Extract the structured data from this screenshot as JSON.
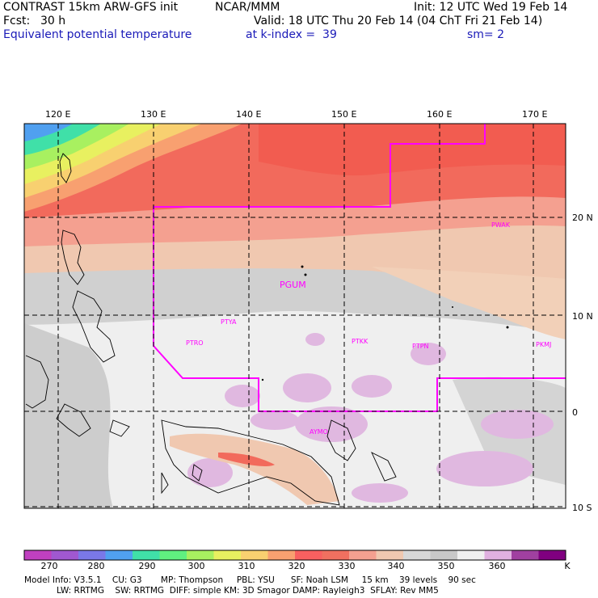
{
  "header": {
    "title": "CONTRAST 15km ARW-GFS init",
    "org": "NCAR/MMM",
    "init": "Init: 12 UTC Wed 19 Feb 14",
    "fcst_label": "Fcst:",
    "fcst_value": "30 h",
    "valid": "Valid: 18 UTC Thu 20 Feb 14 (04 ChT Fri 21 Feb 14)",
    "field": "Equivalent potential temperature",
    "level": "at k-index =  39",
    "smooth": "sm= 2"
  },
  "axes": {
    "lon_labels": [
      "120 E",
      "130 E",
      "140 E",
      "150 E",
      "160 E",
      "170 E"
    ],
    "lat_labels": [
      "20 N",
      "10 N",
      "0",
      "10 S"
    ]
  },
  "stations": [
    "PGUM",
    "PTYA",
    "PTRO",
    "PTKK",
    "PTPN",
    "PKMJ",
    "PWAK",
    "AYMO"
  ],
  "colorscale": {
    "labels": [
      "270",
      "280",
      "290",
      "300",
      "310",
      "320",
      "330",
      "340",
      "350",
      "360",
      "K"
    ],
    "colors": [
      "#c040c0",
      "#a058d0",
      "#7a78e8",
      "#50a0f0",
      "#40e0a8",
      "#60f080",
      "#a8f060",
      "#e8f060",
      "#f8d070",
      "#f8a070",
      "#f86060",
      "#f07060",
      "#f4a090",
      "#f0c8b0",
      "#d8d8d8",
      "#c8c8c8",
      "#f0f0f0",
      "#e0b0e0",
      "#a040a0",
      "#800080"
    ]
  },
  "footer": {
    "line1": "Model Info: V3.5.1    CU: G3       MP: Thompson     PBL: YSU      SF: Noah LSM     15 km    39 levels    90 sec",
    "line2": "LW: RRTMG    SW: RRTMG  DIFF: simple KM: 3D Smagor DAMP: Rayleigh3  SFLAY: Rev MM5"
  }
}
